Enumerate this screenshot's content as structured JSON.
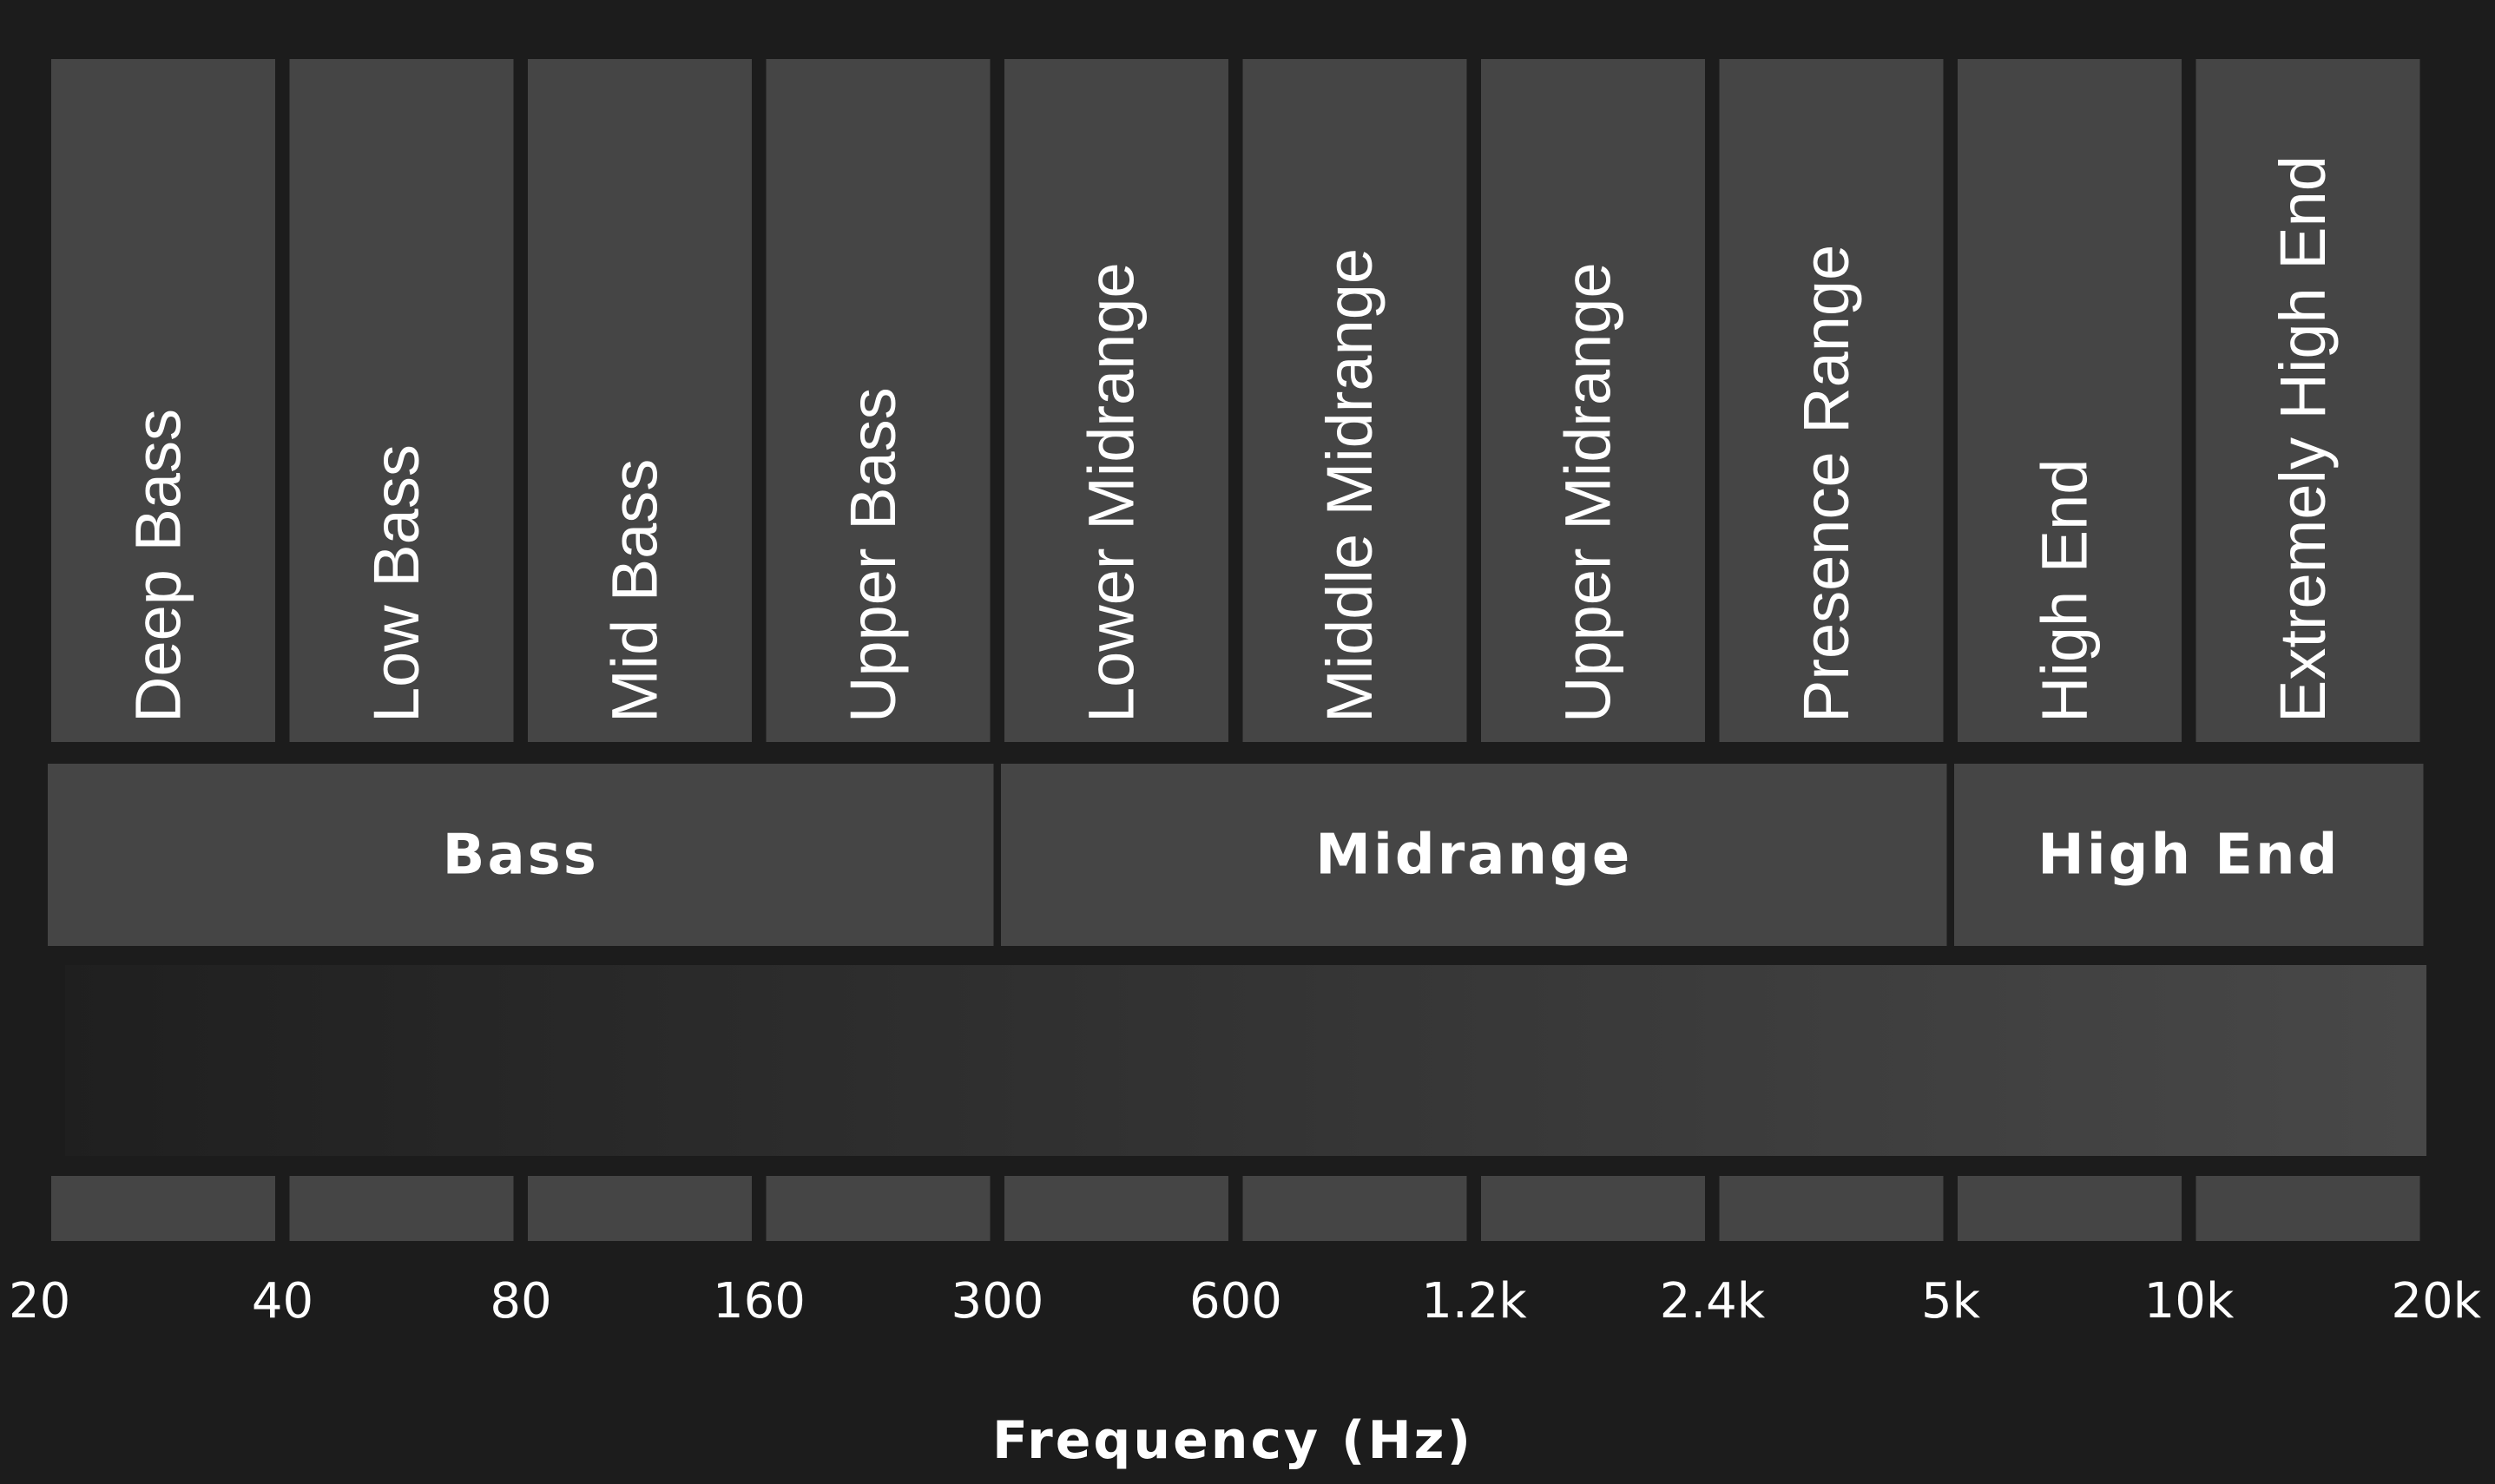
{
  "sub_bands": [
    "Deep Bass",
    "Low Bass",
    "Mid Bass",
    "Upper Bass",
    "Lower Midrange",
    "Middle Midrange",
    "Upper Midrange",
    "Presence Range",
    "High End",
    "Extremely High End"
  ],
  "main_bands": [
    {
      "label": "Bass",
      "start_index": 0,
      "end_index": 3
    },
    {
      "label": "Midrange",
      "start_index": 4,
      "end_index": 7
    },
    {
      "label": "High End",
      "start_index": 8,
      "end_index": 9
    }
  ],
  "frequency_ticks": [
    "20",
    "40",
    "80",
    "160",
    "300",
    "600",
    "1.2k",
    "2.4k",
    "5k",
    "10k",
    "20k"
  ],
  "axis_label": "Frequency (Hz)",
  "colors": {
    "background": "#1c1c1c",
    "band_fill": "#454545",
    "gradient_start": "#1f1f1f",
    "gradient_end": "#484848",
    "text": "#ffffff"
  }
}
